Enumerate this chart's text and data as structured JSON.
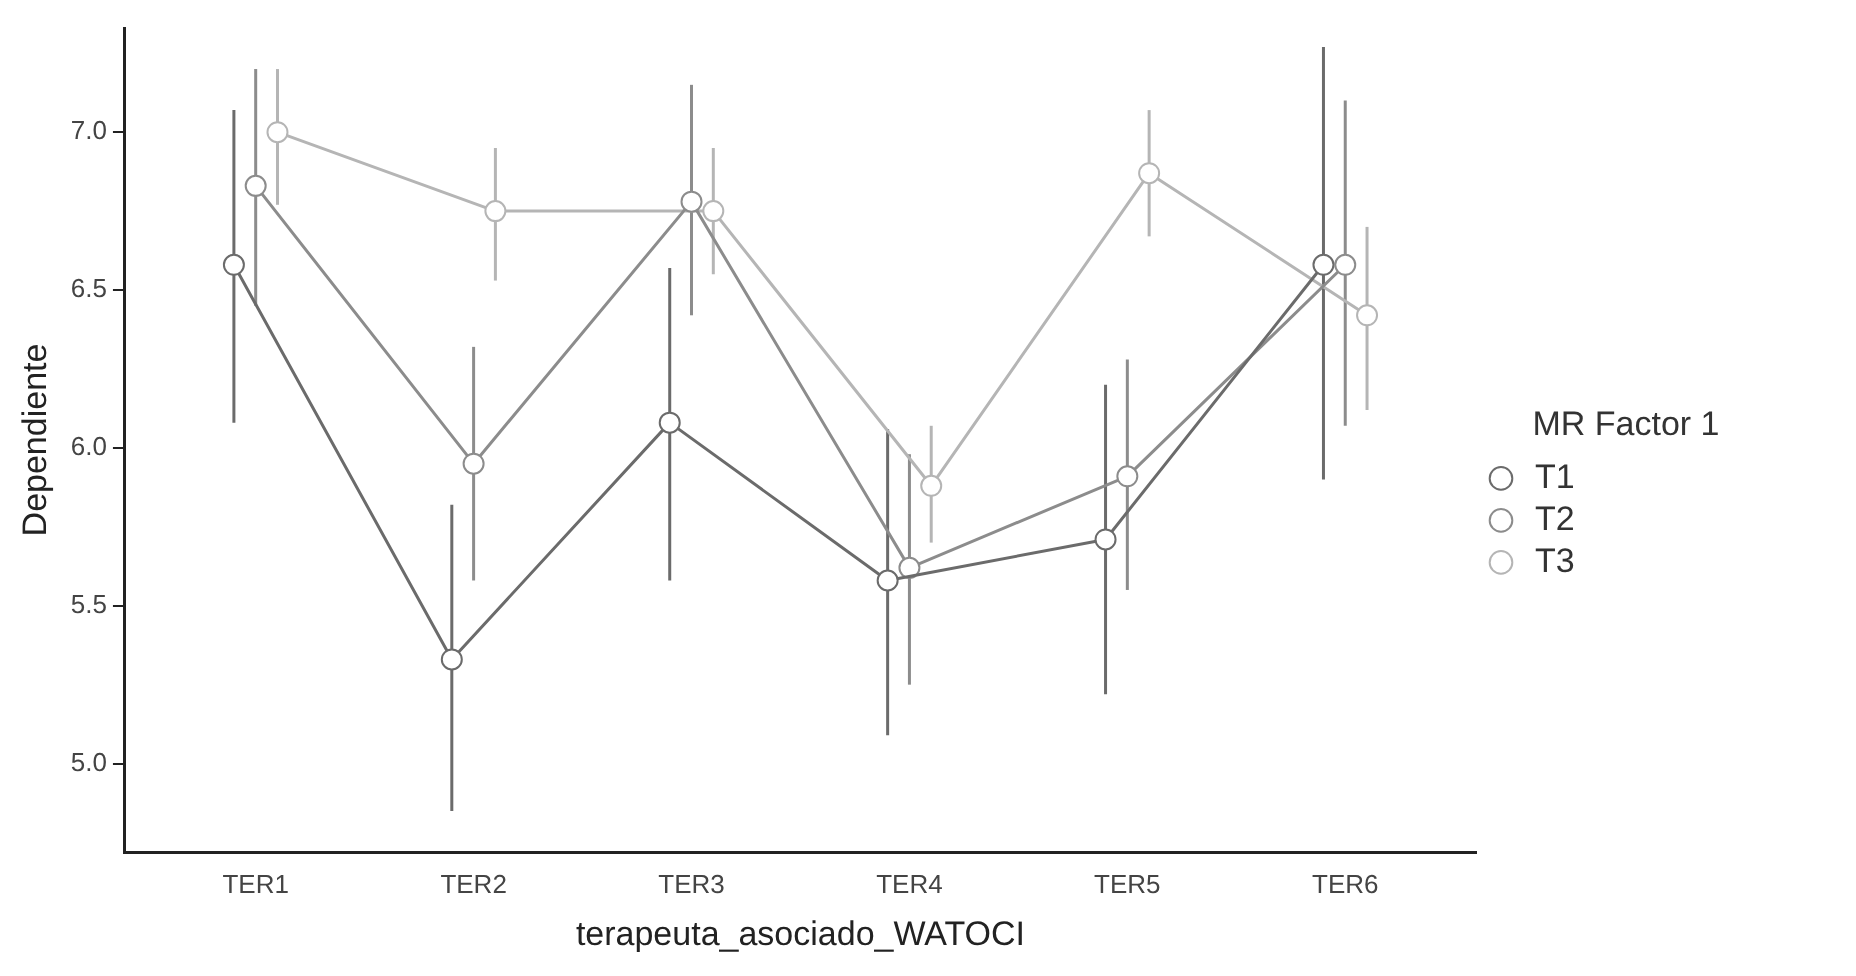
{
  "chart_data": {
    "type": "line",
    "xlabel": "terapeuta_asociado_WATOCI",
    "ylabel": "Dependiente",
    "legend_title": "MR Factor 1",
    "legend": "right",
    "grid": false,
    "marker": "circle",
    "line_style": "solid",
    "categories": [
      "TER1",
      "TER2",
      "TER3",
      "TER4",
      "TER5",
      "TER6"
    ],
    "ylim": [
      4.72,
      7.33
    ],
    "yticks": [
      {
        "value": 5,
        "label": "5.0"
      },
      {
        "value": 5.5,
        "label": "5.5"
      },
      {
        "value": 6,
        "label": "6.0"
      },
      {
        "value": 6.5,
        "label": "6.5"
      },
      {
        "value": 7,
        "label": "7.0"
      }
    ],
    "series": [
      {
        "name": "T1",
        "color": "#6b6b6b",
        "values": [
          6.58,
          5.33,
          6.08,
          5.58,
          5.71,
          6.58
        ],
        "errors": [
          [
            6.08,
            7.07
          ],
          [
            4.85,
            5.82
          ],
          [
            5.58,
            6.57
          ],
          [
            5.09,
            6.06
          ],
          [
            5.22,
            6.2
          ],
          [
            5.9,
            7.27
          ]
        ]
      },
      {
        "name": "T2",
        "color": "#8c8c8c",
        "values": [
          6.83,
          5.95,
          6.78,
          5.62,
          5.91,
          6.58
        ],
        "errors": [
          [
            6.45,
            7.2
          ],
          [
            5.58,
            6.32
          ],
          [
            6.42,
            7.15
          ],
          [
            5.25,
            5.98
          ],
          [
            5.55,
            6.28
          ],
          [
            6.07,
            7.1
          ]
        ]
      },
      {
        "name": "T3",
        "color": "#b5b5b5",
        "values": [
          7.0,
          6.75,
          6.75,
          5.88,
          6.87,
          6.42
        ],
        "errors": [
          [
            6.77,
            7.2
          ],
          [
            6.53,
            6.95
          ],
          [
            6.55,
            6.95
          ],
          [
            5.7,
            6.07
          ],
          [
            6.67,
            7.07
          ],
          [
            6.12,
            6.7
          ]
        ]
      }
    ]
  }
}
